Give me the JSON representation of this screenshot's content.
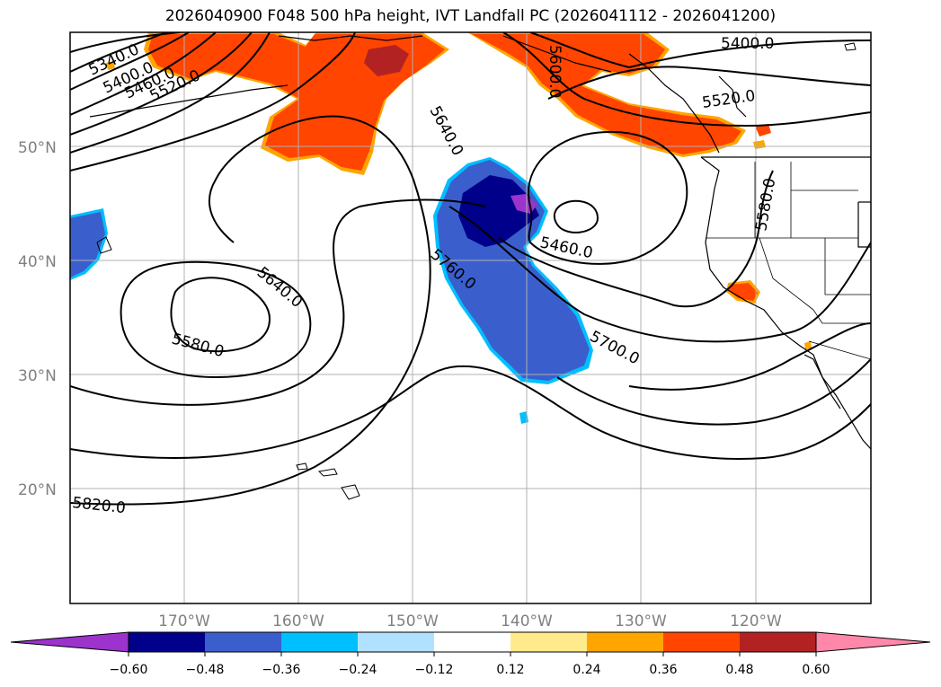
{
  "title": "2026040900 F048 500 hPa height, IVT Landfall PC (2026041112 - 2026041200)",
  "lat_labels": [
    "50°N",
    "40°N",
    "30°N",
    "20°N"
  ],
  "lon_labels": [
    "170°W",
    "160°W",
    "150°W",
    "140°W",
    "130°W",
    "120°W"
  ],
  "contour_labels": [
    "5340.0",
    "5400.0",
    "5460.0",
    "5520.0",
    "5400.0",
    "5520.0",
    "5600.0",
    "5640.0",
    "5460.0",
    "5580.0",
    "5760.0",
    "5640.0",
    "5580.0",
    "5700.0",
    "5820.0"
  ],
  "colorbar": {
    "tick_labels": [
      "−0.60",
      "−0.48",
      "−0.36",
      "−0.24",
      "−0.12",
      "0.12",
      "0.24",
      "0.36",
      "0.48",
      "0.60"
    ],
    "colors": [
      "#9b33cc",
      "#00008b",
      "#3a5fcd",
      "#00bfff",
      "#b0e2ff",
      "#ffffff",
      "#ffeb8c",
      "#ffa500",
      "#ff4500",
      "#b22222",
      "#ff88aa"
    ]
  }
}
